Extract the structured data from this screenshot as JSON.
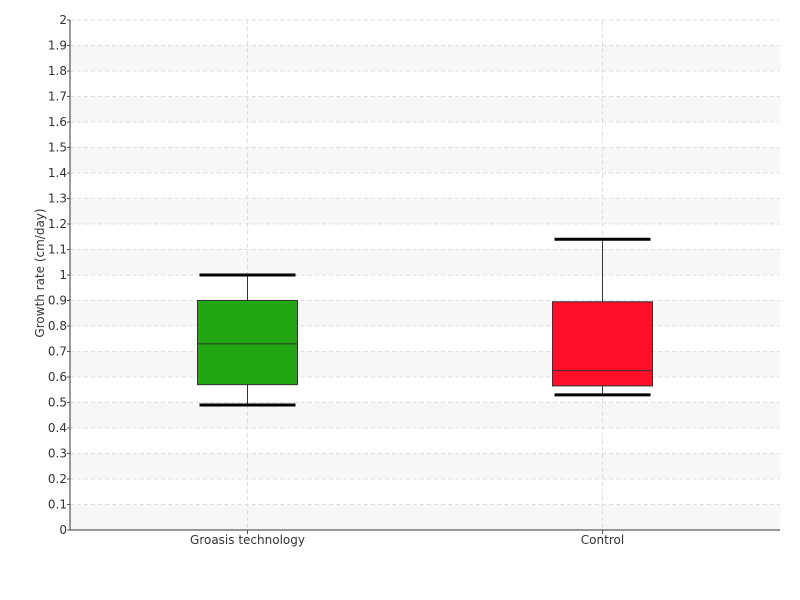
{
  "chart_data": {
    "type": "boxplot",
    "ylabel": "Growth rate (cm/day)",
    "ylim": [
      0,
      2
    ],
    "y_ticks": [
      "0",
      "0.1",
      "0.2",
      "0.3",
      "0.4",
      "0.5",
      "0.6",
      "0.7",
      "0.8",
      "0.9",
      "1",
      "1.1",
      "1.2",
      "1.3",
      "1.4",
      "1.5",
      "1.6",
      "1.7",
      "1.8",
      "1.9",
      "2"
    ],
    "categories": [
      "Groasis technology",
      "Control"
    ],
    "boxes": [
      {
        "category": "Groasis technology",
        "min": 0.49,
        "q1": 0.57,
        "median": 0.73,
        "q3": 0.9,
        "max": 1.0,
        "color": "#22a611"
      },
      {
        "category": "Control",
        "min": 0.53,
        "q1": 0.565,
        "median": 0.625,
        "q3": 0.895,
        "max": 1.14,
        "color": "#ff0f28"
      }
    ],
    "grid": true,
    "band_color": "#f7f7f7",
    "grid_color": "#dddddd"
  }
}
